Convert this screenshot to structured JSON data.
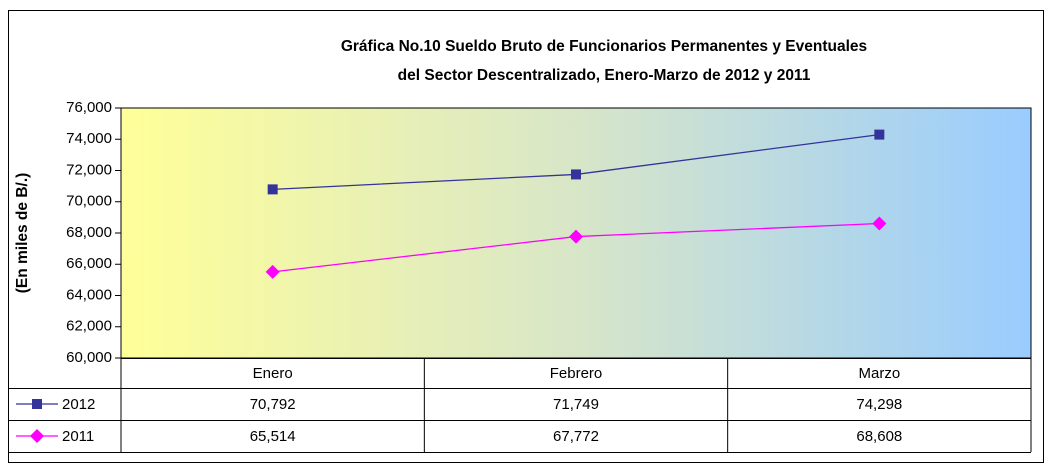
{
  "chart_data": {
    "type": "line",
    "title": [
      "Gráfica No.10 Sueldo Bruto de Funcionarios Permanentes y Eventuales",
      "del Sector Descentralizado, Enero-Marzo de 2012 y 2011"
    ],
    "y_label": "(En miles de B/.)",
    "categories": [
      "Enero",
      "Febrero",
      "Marzo"
    ],
    "series": [
      {
        "name": "2012",
        "color": "#333399",
        "marker": "square",
        "values": [
          70792,
          71749,
          74298
        ],
        "value_labels": [
          "70,792",
          "71,749",
          "74,298"
        ]
      },
      {
        "name": "2011",
        "color": "#ff00ff",
        "marker": "diamond",
        "values": [
          65514,
          67772,
          68608
        ],
        "value_labels": [
          "65,514",
          "67,772",
          "68,608"
        ]
      }
    ],
    "ylim": [
      60000,
      76000
    ],
    "yticks": [
      {
        "value": 60000,
        "label": "60,000"
      },
      {
        "value": 62000,
        "label": "62,000"
      },
      {
        "value": 64000,
        "label": "64,000"
      },
      {
        "value": 66000,
        "label": "66,000"
      },
      {
        "value": 68000,
        "label": "68,000"
      },
      {
        "value": 70000,
        "label": "70,000"
      },
      {
        "value": 72000,
        "label": "72,000"
      },
      {
        "value": 74000,
        "label": "74,000"
      },
      {
        "value": 76000,
        "label": "76,000"
      }
    ]
  }
}
